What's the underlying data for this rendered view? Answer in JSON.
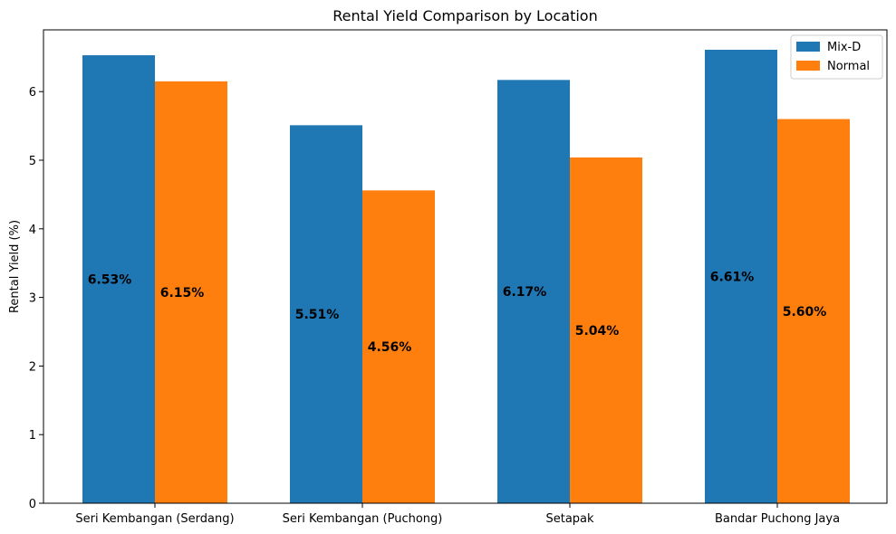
{
  "chart_data": {
    "type": "bar",
    "title": "Rental Yield Comparison by Location",
    "xlabel": "",
    "ylabel": "Rental Yield (%)",
    "ylim": [
      0,
      6.9
    ],
    "yticks": [
      0,
      1,
      2,
      3,
      4,
      5,
      6
    ],
    "categories": [
      "Seri Kembangan (Serdang)",
      "Seri Kembangan (Puchong)",
      "Setapak",
      "Bandar Puchong Jaya"
    ],
    "series": [
      {
        "name": "Mix-D",
        "color": "#1f77b4",
        "values": [
          6.53,
          5.51,
          6.17,
          6.61
        ],
        "labels": [
          "6.53%",
          "5.51%",
          "6.17%",
          "6.61%"
        ]
      },
      {
        "name": "Normal",
        "color": "#ff7f0e",
        "values": [
          6.15,
          4.56,
          5.04,
          5.6
        ],
        "labels": [
          "6.15%",
          "4.56%",
          "5.04%",
          "5.60%"
        ]
      }
    ],
    "legend_position": "top-right",
    "grid": false
  }
}
